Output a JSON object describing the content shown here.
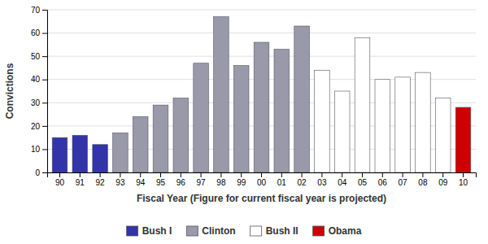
{
  "chart_data": {
    "type": "bar",
    "xlabel": "Fiscal Year (Figure for current fiscal year is projected)",
    "ylabel": "Convictions",
    "categories": [
      "90",
      "91",
      "92",
      "93",
      "94",
      "95",
      "96",
      "97",
      "98",
      "99",
      "00",
      "01",
      "02",
      "03",
      "04",
      "05",
      "06",
      "07",
      "08",
      "09",
      "10"
    ],
    "series": [
      {
        "name": "Bush I",
        "color": "#3333aa",
        "values": [
          15,
          16,
          12,
          null,
          null,
          null,
          null,
          null,
          null,
          null,
          null,
          null,
          null,
          null,
          null,
          null,
          null,
          null,
          null,
          null,
          null
        ]
      },
      {
        "name": "Clinton",
        "color": "#9999aa",
        "values": [
          null,
          null,
          null,
          17,
          24,
          29,
          32,
          47,
          67,
          46,
          56,
          53,
          63,
          null,
          null,
          null,
          null,
          null,
          null,
          null,
          null
        ]
      },
      {
        "name": "Bush II",
        "color": "#ffffff",
        "values": [
          null,
          null,
          null,
          null,
          null,
          null,
          null,
          null,
          null,
          null,
          null,
          null,
          null,
          44,
          35,
          58,
          40,
          41,
          43,
          32,
          null
        ]
      },
      {
        "name": "Obama",
        "color": "#cc0000",
        "values": [
          null,
          null,
          null,
          null,
          null,
          null,
          null,
          null,
          null,
          null,
          null,
          null,
          null,
          null,
          null,
          null,
          null,
          null,
          null,
          null,
          28
        ]
      }
    ],
    "ylim": [
      0,
      70
    ],
    "yticks": [
      0,
      10,
      20,
      30,
      40,
      50,
      60,
      70
    ],
    "grid": true,
    "stacked": true,
    "legend": "bottom"
  }
}
